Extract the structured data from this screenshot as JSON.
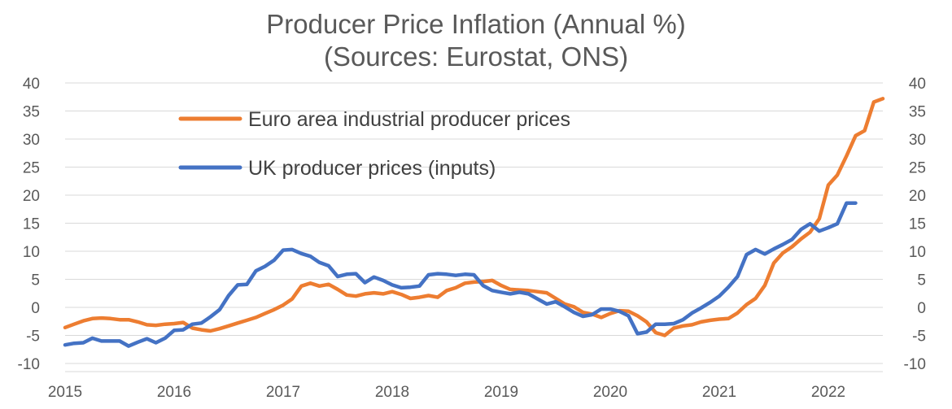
{
  "chart_data": {
    "type": "line",
    "title": "Producer Price Inflation (Annual %)",
    "subtitle": "(Sources: Eurostat, ONS)",
    "xlabel": "",
    "ylabel": "",
    "x_tick_labels": [
      "2015",
      "2016",
      "2017",
      "2018",
      "2019",
      "2020",
      "2021",
      "2022"
    ],
    "y_tick_labels": [
      "40",
      "35",
      "30",
      "25",
      "20",
      "15",
      "10",
      "5",
      "0",
      "-5",
      "-10"
    ],
    "xlim": [
      2015.0,
      2022.5
    ],
    "ylim": [
      -10,
      40
    ],
    "y_ticks": [
      40,
      35,
      30,
      25,
      20,
      15,
      10,
      5,
      0,
      -5,
      -10
    ],
    "grid": true,
    "legend_position": "top-left",
    "series": [
      {
        "name": "Euro area industrial producer prices",
        "color": "#ED7D31",
        "points": [
          [
            2015.0,
            -3.6
          ],
          [
            2015.083,
            -3.0
          ],
          [
            2015.167,
            -2.4
          ],
          [
            2015.25,
            -2.0
          ],
          [
            2015.333,
            -1.9
          ],
          [
            2015.417,
            -2.0
          ],
          [
            2015.5,
            -2.2
          ],
          [
            2015.583,
            -2.2
          ],
          [
            2015.667,
            -2.6
          ],
          [
            2015.75,
            -3.1
          ],
          [
            2015.833,
            -3.2
          ],
          [
            2015.917,
            -3.0
          ],
          [
            2016.0,
            -2.9
          ],
          [
            2016.083,
            -2.7
          ],
          [
            2016.167,
            -3.7
          ],
          [
            2016.25,
            -4.0
          ],
          [
            2016.333,
            -4.2
          ],
          [
            2016.417,
            -3.8
          ],
          [
            2016.5,
            -3.3
          ],
          [
            2016.583,
            -2.8
          ],
          [
            2016.667,
            -2.3
          ],
          [
            2016.75,
            -1.8
          ],
          [
            2016.833,
            -1.1
          ],
          [
            2016.917,
            -0.4
          ],
          [
            2017.0,
            0.4
          ],
          [
            2017.083,
            1.5
          ],
          [
            2017.167,
            3.8
          ],
          [
            2017.25,
            4.3
          ],
          [
            2017.333,
            3.8
          ],
          [
            2017.417,
            4.1
          ],
          [
            2017.5,
            3.2
          ],
          [
            2017.583,
            2.2
          ],
          [
            2017.667,
            2.0
          ],
          [
            2017.75,
            2.4
          ],
          [
            2017.833,
            2.6
          ],
          [
            2017.917,
            2.4
          ],
          [
            2018.0,
            2.8
          ],
          [
            2018.083,
            2.3
          ],
          [
            2018.167,
            1.6
          ],
          [
            2018.25,
            1.8
          ],
          [
            2018.333,
            2.1
          ],
          [
            2018.417,
            1.8
          ],
          [
            2018.5,
            3.0
          ],
          [
            2018.583,
            3.5
          ],
          [
            2018.667,
            4.3
          ],
          [
            2018.75,
            4.5
          ],
          [
            2018.833,
            4.6
          ],
          [
            2018.917,
            4.8
          ],
          [
            2019.0,
            3.9
          ],
          [
            2019.083,
            3.2
          ],
          [
            2019.167,
            3.1
          ],
          [
            2019.25,
            3.0
          ],
          [
            2019.333,
            2.8
          ],
          [
            2019.417,
            2.6
          ],
          [
            2019.5,
            1.6
          ],
          [
            2019.583,
            0.6
          ],
          [
            2019.667,
            0.1
          ],
          [
            2019.75,
            -0.9
          ],
          [
            2019.833,
            -1.2
          ],
          [
            2019.917,
            -1.8
          ],
          [
            2020.0,
            -1.1
          ],
          [
            2020.083,
            -0.6
          ],
          [
            2020.167,
            -0.7
          ],
          [
            2020.25,
            -1.5
          ],
          [
            2020.333,
            -2.6
          ],
          [
            2020.417,
            -4.5
          ],
          [
            2020.5,
            -5.0
          ],
          [
            2020.583,
            -3.7
          ],
          [
            2020.667,
            -3.3
          ],
          [
            2020.75,
            -3.1
          ],
          [
            2020.833,
            -2.6
          ],
          [
            2020.917,
            -2.3
          ],
          [
            2021.0,
            -2.1
          ],
          [
            2021.083,
            -2.0
          ],
          [
            2021.167,
            -1.0
          ],
          [
            2021.25,
            0.5
          ],
          [
            2021.333,
            1.6
          ],
          [
            2021.417,
            3.9
          ],
          [
            2021.5,
            7.9
          ],
          [
            2021.583,
            9.7
          ],
          [
            2021.667,
            10.8
          ],
          [
            2021.75,
            12.2
          ],
          [
            2021.833,
            13.4
          ],
          [
            2021.917,
            15.8
          ],
          [
            2022.0,
            21.8
          ],
          [
            2022.083,
            23.6
          ],
          [
            2022.167,
            27.0
          ],
          [
            2022.25,
            30.6
          ],
          [
            2022.333,
            31.5
          ],
          [
            2022.417,
            36.6
          ],
          [
            2022.5,
            37.2
          ]
        ]
      },
      {
        "name": "UK producer prices (inputs)",
        "color": "#4472C4",
        "points": [
          [
            2015.0,
            -6.7
          ],
          [
            2015.083,
            -6.4
          ],
          [
            2015.167,
            -6.3
          ],
          [
            2015.25,
            -5.5
          ],
          [
            2015.333,
            -6.0
          ],
          [
            2015.417,
            -6.0
          ],
          [
            2015.5,
            -6.0
          ],
          [
            2015.583,
            -6.9
          ],
          [
            2015.667,
            -6.2
          ],
          [
            2015.75,
            -5.6
          ],
          [
            2015.833,
            -6.3
          ],
          [
            2015.917,
            -5.5
          ],
          [
            2016.0,
            -4.1
          ],
          [
            2016.083,
            -4.0
          ],
          [
            2016.167,
            -3.0
          ],
          [
            2016.25,
            -2.8
          ],
          [
            2016.333,
            -1.7
          ],
          [
            2016.417,
            -0.4
          ],
          [
            2016.5,
            2.1
          ],
          [
            2016.583,
            4.0
          ],
          [
            2016.667,
            4.1
          ],
          [
            2016.75,
            6.5
          ],
          [
            2016.833,
            7.3
          ],
          [
            2016.917,
            8.4
          ],
          [
            2017.0,
            10.2
          ],
          [
            2017.083,
            10.3
          ],
          [
            2017.167,
            9.6
          ],
          [
            2017.25,
            9.1
          ],
          [
            2017.333,
            8.0
          ],
          [
            2017.417,
            7.4
          ],
          [
            2017.5,
            5.5
          ],
          [
            2017.583,
            5.9
          ],
          [
            2017.667,
            6.0
          ],
          [
            2017.75,
            4.4
          ],
          [
            2017.833,
            5.4
          ],
          [
            2017.917,
            4.8
          ],
          [
            2018.0,
            4.0
          ],
          [
            2018.083,
            3.5
          ],
          [
            2018.167,
            3.6
          ],
          [
            2018.25,
            3.8
          ],
          [
            2018.333,
            5.8
          ],
          [
            2018.417,
            6.0
          ],
          [
            2018.5,
            5.9
          ],
          [
            2018.583,
            5.7
          ],
          [
            2018.667,
            5.9
          ],
          [
            2018.75,
            5.8
          ],
          [
            2018.833,
            3.9
          ],
          [
            2018.917,
            3.0
          ],
          [
            2019.0,
            2.7
          ],
          [
            2019.083,
            2.4
          ],
          [
            2019.167,
            2.7
          ],
          [
            2019.25,
            2.4
          ],
          [
            2019.333,
            1.5
          ],
          [
            2019.417,
            0.6
          ],
          [
            2019.5,
            1.0
          ],
          [
            2019.583,
            0.1
          ],
          [
            2019.667,
            -0.9
          ],
          [
            2019.75,
            -1.6
          ],
          [
            2019.833,
            -1.3
          ],
          [
            2019.917,
            -0.3
          ],
          [
            2020.0,
            -0.3
          ],
          [
            2020.083,
            -0.7
          ],
          [
            2020.167,
            -1.5
          ],
          [
            2020.25,
            -4.7
          ],
          [
            2020.333,
            -4.4
          ],
          [
            2020.417,
            -3.0
          ],
          [
            2020.5,
            -3.0
          ],
          [
            2020.583,
            -2.9
          ],
          [
            2020.667,
            -2.2
          ],
          [
            2020.75,
            -1.0
          ],
          [
            2020.833,
            -0.1
          ],
          [
            2020.917,
            0.9
          ],
          [
            2021.0,
            2.0
          ],
          [
            2021.083,
            3.6
          ],
          [
            2021.167,
            5.5
          ],
          [
            2021.25,
            9.4
          ],
          [
            2021.333,
            10.3
          ],
          [
            2021.417,
            9.5
          ],
          [
            2021.5,
            10.4
          ],
          [
            2021.583,
            11.2
          ],
          [
            2021.667,
            12.1
          ],
          [
            2021.75,
            13.9
          ],
          [
            2021.833,
            14.9
          ],
          [
            2021.917,
            13.6
          ],
          [
            2022.0,
            14.2
          ],
          [
            2022.083,
            14.9
          ],
          [
            2022.167,
            18.6
          ],
          [
            2022.25,
            18.6
          ]
        ]
      }
    ]
  }
}
